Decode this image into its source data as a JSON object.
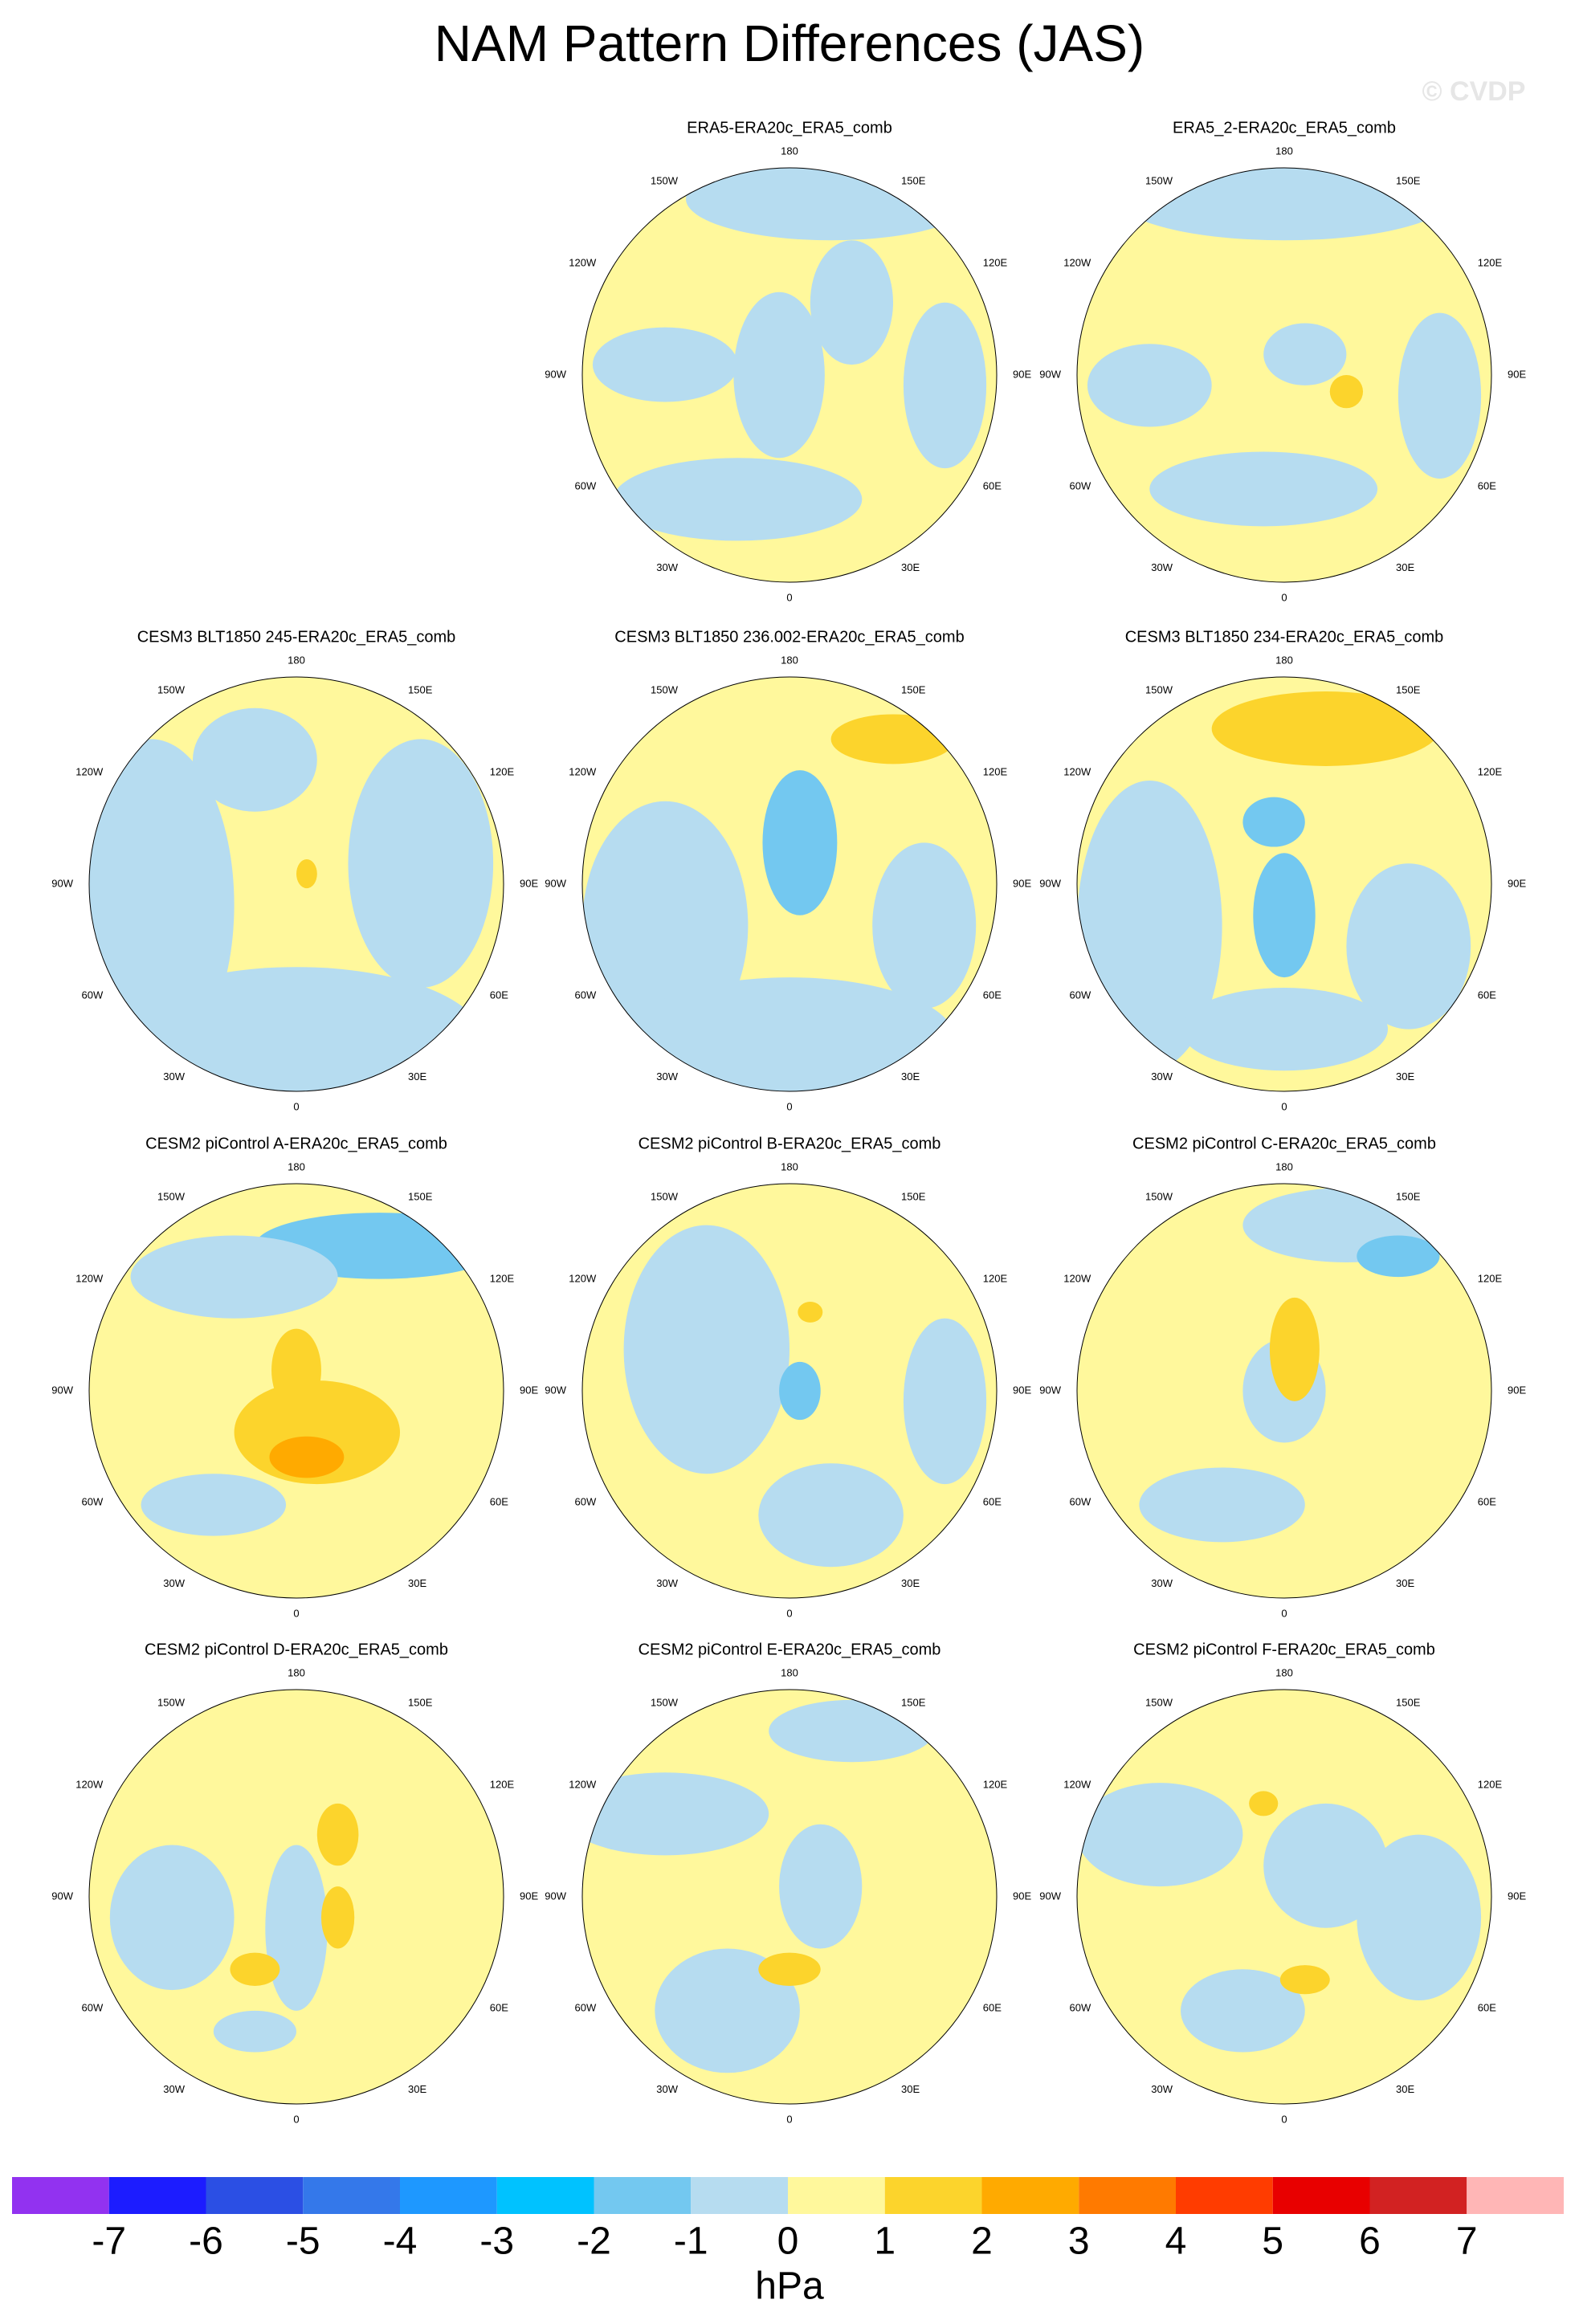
{
  "title": "NAM Pattern Differences (JAS)",
  "watermark": "© CVDP",
  "panels": [
    {
      "title": "ERA5-ERA20c_ERA5_comb"
    },
    {
      "title": "ERA5_2-ERA20c_ERA5_comb"
    },
    {
      "title": "CESM3 BLT1850 245-ERA20c_ERA5_comb"
    },
    {
      "title": "CESM3 BLT1850 236.002-ERA20c_ERA5_comb"
    },
    {
      "title": "CESM3 BLT1850 234-ERA20c_ERA5_comb"
    },
    {
      "title": "CESM2 piControl A-ERA20c_ERA5_comb"
    },
    {
      "title": "CESM2 piControl B-ERA20c_ERA5_comb"
    },
    {
      "title": "CESM2 piControl C-ERA20c_ERA5_comb"
    },
    {
      "title": "CESM2 piControl D-ERA20c_ERA5_comb"
    },
    {
      "title": "CESM2 piControl E-ERA20c_ERA5_comb"
    },
    {
      "title": "CESM2 piControl F-ERA20c_ERA5_comb"
    }
  ],
  "longitude_labels": [
    {
      "lon": 180,
      "label": "180"
    },
    {
      "lon": -150,
      "label": "150W"
    },
    {
      "lon": 150,
      "label": "150E"
    },
    {
      "lon": -120,
      "label": "120W"
    },
    {
      "lon": 120,
      "label": "120E"
    },
    {
      "lon": -90,
      "label": "90W"
    },
    {
      "lon": 90,
      "label": "90E"
    },
    {
      "lon": -60,
      "label": "60W"
    },
    {
      "lon": 60,
      "label": "60E"
    },
    {
      "lon": -30,
      "label": "30W"
    },
    {
      "lon": 30,
      "label": "30E"
    },
    {
      "lon": 0,
      "label": "0"
    }
  ],
  "colorbar": {
    "colors": [
      "#9232f0",
      "#1c1cff",
      "#2b4fe4",
      "#3478ea",
      "#1e98ff",
      "#00c2ff",
      "#73c8f0",
      "#b6dcf0",
      "#fff89c",
      "#fcd42c",
      "#ffaa00",
      "#ff7a00",
      "#ff3c00",
      "#e80000",
      "#d22222",
      "#ffb6b6"
    ],
    "ticks": [
      -7,
      -6,
      -5,
      -4,
      -3,
      -2,
      -1,
      0,
      1,
      2,
      3,
      4,
      5,
      6,
      7
    ],
    "unit": "hPa"
  }
}
